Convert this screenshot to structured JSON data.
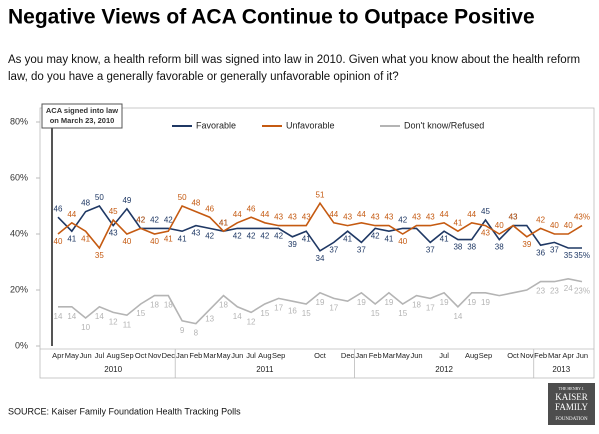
{
  "chart_data": {
    "type": "line",
    "title": "Negative Views of ACA Continue to Outpace Positive",
    "subtitle": "As you may know, a health reform bill was signed into law in 2010. Given what you know about the health reform law, do you have a generally favorable or generally unfavorable opinion of it?",
    "groups": [
      {
        "label": "2010",
        "categories": [
          "Apr",
          "May",
          "Jun",
          "Jul",
          "Aug",
          "Sep",
          "Oct",
          "Nov",
          "Dec"
        ]
      },
      {
        "label": "2011",
        "categories": [
          "Jan",
          "Feb",
          "Mar",
          "May",
          "Jun",
          "Jul",
          "Aug",
          "Sep",
          null,
          null,
          "Oct",
          null,
          "Dec"
        ]
      },
      {
        "label": "2012",
        "categories": [
          "Jan",
          "Feb",
          "Mar",
          "May",
          "Jun",
          null,
          "Jul",
          null,
          "Aug",
          "Sep",
          null,
          "Oct",
          "Nov"
        ]
      },
      {
        "label": "2013",
        "categories": [
          "Feb",
          "Mar",
          "Apr",
          "Jun"
        ]
      }
    ],
    "series": [
      {
        "name": "Favorable",
        "color": "#1f3864",
        "values": [
          46,
          41,
          48,
          50,
          43,
          49,
          42,
          42,
          42,
          41,
          43,
          42,
          41,
          42,
          42,
          42,
          42,
          39,
          41,
          34,
          37,
          41,
          37,
          42,
          41,
          42,
          42,
          37,
          41,
          38,
          38,
          45,
          38,
          43,
          43,
          36,
          37,
          35,
          35
        ],
        "value_labels": [
          "46",
          "41",
          "48",
          "50",
          "43",
          "49",
          "42",
          "42",
          "42",
          "41",
          "43",
          "42",
          "41",
          "42",
          "42",
          "42",
          "42",
          "39",
          "41",
          "34",
          "37",
          "41",
          "37",
          "42",
          "41",
          "42",
          null,
          "37",
          "41",
          "38",
          "38",
          "45",
          "38",
          "43",
          null,
          "36",
          "37",
          "35",
          "35%"
        ]
      },
      {
        "name": "Unfavorable",
        "color": "#c55a11",
        "values": [
          40,
          44,
          41,
          35,
          45,
          40,
          42,
          40,
          41,
          50,
          48,
          46,
          41,
          44,
          46,
          44,
          43,
          43,
          43,
          51,
          44,
          43,
          44,
          43,
          43,
          40,
          43,
          43,
          44,
          41,
          44,
          43,
          40,
          43,
          39,
          42,
          40,
          40,
          43
        ],
        "value_labels": [
          "40",
          "44",
          "41",
          "35",
          "45",
          "40",
          "42",
          "40",
          "41",
          "50",
          "48",
          "46",
          "41",
          "44",
          "46",
          "44",
          "43",
          "43",
          "43",
          "51",
          "44",
          "43",
          "44",
          "43",
          "43",
          "40",
          "43",
          "43",
          "44",
          "41",
          "44",
          "43",
          "40",
          "43",
          "39",
          "42",
          "40",
          "40",
          "43%"
        ]
      },
      {
        "name": "Don't know/Refused",
        "color": "#b4b4b4",
        "values": [
          14,
          14,
          10,
          14,
          12,
          11,
          15,
          18,
          18,
          9,
          8,
          13,
          18,
          14,
          12,
          15,
          17,
          16,
          15,
          19,
          17,
          16,
          19,
          15,
          19,
          15,
          18,
          17,
          19,
          14,
          19,
          19,
          18,
          19,
          20,
          23,
          23,
          24,
          23
        ],
        "value_labels": [
          "14",
          "14",
          "10",
          "14",
          "12",
          "11",
          "15",
          "18",
          "18",
          "9",
          "8",
          "13",
          "18",
          "14",
          "12",
          "15",
          "17",
          "16",
          "15",
          "19",
          "17",
          null,
          "19",
          "15",
          "19",
          "15",
          "18",
          "17",
          "19",
          "14",
          "19",
          "19",
          null,
          null,
          null,
          "23",
          "23",
          "24",
          "23%"
        ]
      }
    ],
    "ylim": [
      0,
      80
    ],
    "yticks": [
      {
        "value": 0,
        "label": "0%"
      },
      {
        "value": 20,
        "label": "20%"
      },
      {
        "value": 40,
        "label": "40%"
      },
      {
        "value": 60,
        "label": "60%"
      },
      {
        "value": 80,
        "label": "80%"
      }
    ],
    "annotation": [
      "ACA signed into law",
      "on March 23, 2010"
    ],
    "source": "SOURCE: Kaiser Family Foundation Health Tracking Polls",
    "logo": [
      "THE HENRY J.",
      "KAISER",
      "FAMILY",
      "FOUNDATION"
    ]
  }
}
